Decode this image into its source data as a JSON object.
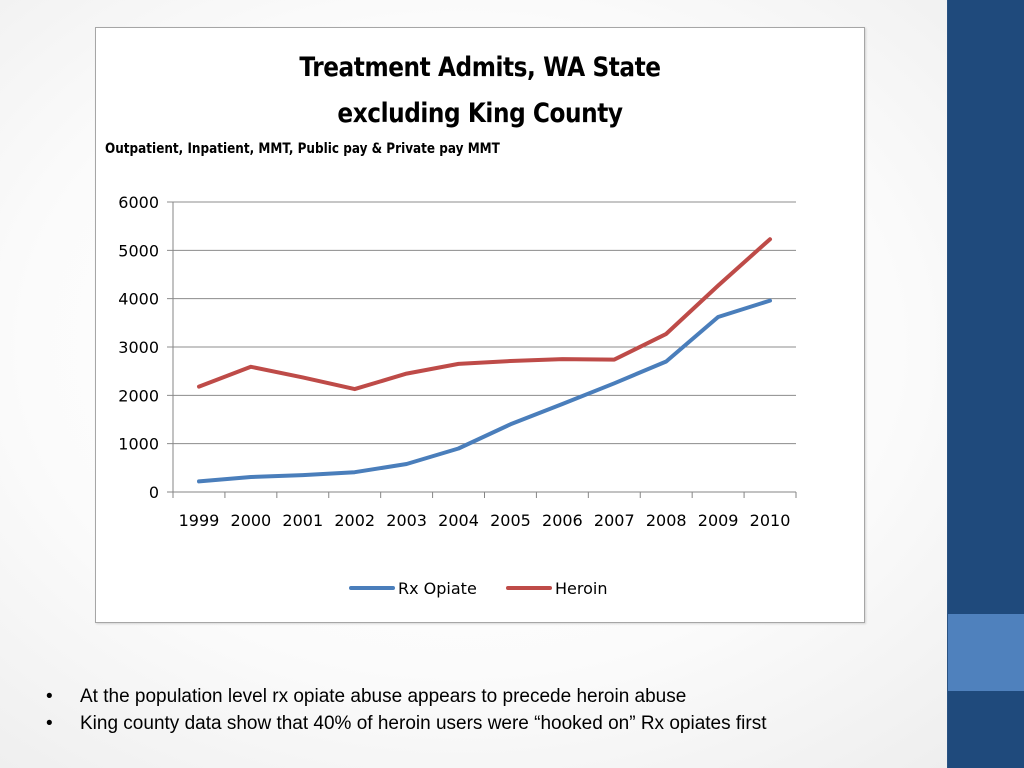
{
  "slide": {
    "colors": {
      "sidebar": "#1f4a7c",
      "sidebar_accent": "#4f81bd",
      "rx_line": "#4a7ebb",
      "heroin_line": "#be4b48"
    },
    "bullets": [
      {
        "marker": "•",
        "text": "At the population level rx opiate abuse appears to precede heroin abuse"
      },
      {
        "marker": "•",
        "text": "King county data show that 40% of heroin users were “hooked on” Rx opiates first"
      }
    ]
  },
  "chart_data": {
    "type": "line",
    "title": "Treatment Admits, WA State",
    "title_line2": "excluding King County",
    "subtitle": "Outpatient, Inpatient, MMT, Public pay & Private pay MMT",
    "xlabel": "",
    "ylabel": "",
    "categories": [
      "1999",
      "2000",
      "2001",
      "2002",
      "2003",
      "2004",
      "2005",
      "2006",
      "2007",
      "2008",
      "2009",
      "2010"
    ],
    "ylim": [
      0,
      6000
    ],
    "yticks": [
      0,
      1000,
      2000,
      3000,
      4000,
      5000,
      6000
    ],
    "grid": true,
    "legend": "bottom",
    "series": [
      {
        "name": "Rx Opiate",
        "color": "#4a7ebb",
        "values": [
          220,
          310,
          350,
          410,
          580,
          900,
          1400,
          1820,
          2250,
          2700,
          3620,
          3960
        ]
      },
      {
        "name": "Heroin",
        "color": "#be4b48",
        "values": [
          2180,
          2590,
          2370,
          2130,
          2450,
          2650,
          2710,
          2750,
          2740,
          3270,
          4270,
          5230
        ]
      }
    ]
  }
}
